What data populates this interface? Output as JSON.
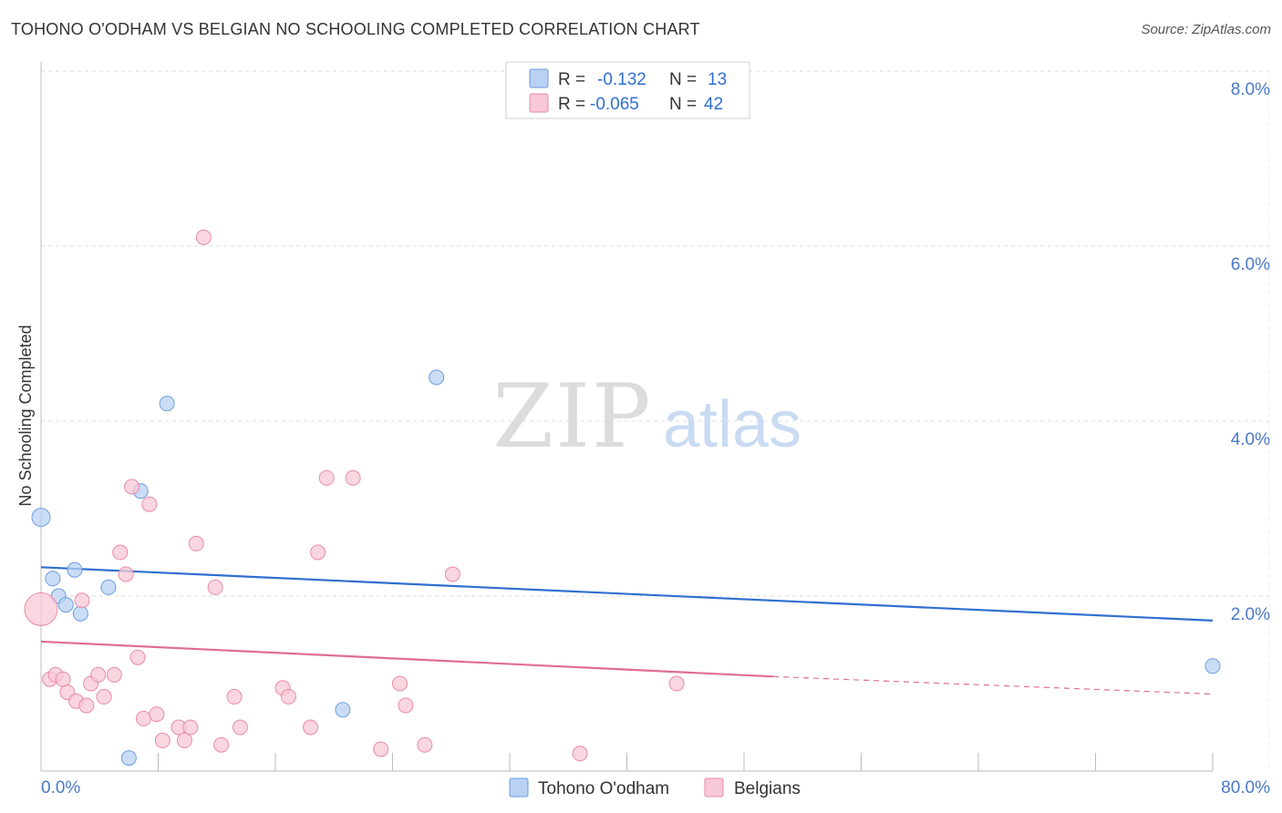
{
  "chart_data": {
    "type": "scatter",
    "title": "TOHONO O'ODHAM VS BELGIAN NO SCHOOLING COMPLETED CORRELATION CHART",
    "source": "Source: ZipAtlas.com",
    "ylabel": "No Schooling Completed",
    "xlabel": "",
    "xlim": [
      0,
      80
    ],
    "ylim": [
      0,
      8
    ],
    "x_tick_labels": [
      "0.0%",
      "80.0%"
    ],
    "y_tick_labels": [
      "8.0%",
      "6.0%",
      "4.0%",
      "2.0%"
    ],
    "y_tick_values": [
      8,
      6,
      4,
      2
    ],
    "watermark": {
      "zip": "ZIP",
      "atlas": "atlas"
    },
    "colors": {
      "tohono": "#6b9ce0",
      "tohono_fill": "#b9d1f3",
      "belgians": "#e98aa8",
      "belgians_fill": "#f8c8d6",
      "tohono_line": "#2f6fd1",
      "belgians_line": "#e06d93",
      "axis_label": "#4a78c8"
    },
    "legend": [
      {
        "series": "tohono",
        "r_label": "R =",
        "r_value": "-0.132",
        "n_label": "N =",
        "n_value": "13"
      },
      {
        "series": "belgians",
        "r_label": "R =",
        "r_value": "-0.065",
        "n_label": "N =",
        "n_value": "42"
      }
    ],
    "series": [
      {
        "name": "Tohono O'odham",
        "key": "tohono",
        "points": [
          [
            0.0,
            2.9
          ],
          [
            0.8,
            2.2
          ],
          [
            1.2,
            2.0
          ],
          [
            1.7,
            1.9
          ],
          [
            2.3,
            2.3
          ],
          [
            2.7,
            1.8
          ],
          [
            4.6,
            2.1
          ],
          [
            6.8,
            3.2
          ],
          [
            8.6,
            4.2
          ],
          [
            20.6,
            0.7
          ],
          [
            27.0,
            4.5
          ],
          [
            6.0,
            0.15
          ],
          [
            80.0,
            1.2
          ]
        ],
        "trend": {
          "x1": 0,
          "y1": 2.33,
          "x2": 80,
          "y2": 1.72
        }
      },
      {
        "name": "Belgians",
        "key": "belgians",
        "points": [
          [
            0.0,
            1.85
          ],
          [
            0.6,
            1.05
          ],
          [
            1.0,
            1.1
          ],
          [
            1.5,
            1.05
          ],
          [
            1.8,
            0.9
          ],
          [
            2.4,
            0.8
          ],
          [
            2.8,
            1.95
          ],
          [
            3.1,
            0.75
          ],
          [
            3.4,
            1.0
          ],
          [
            3.9,
            1.1
          ],
          [
            4.3,
            0.85
          ],
          [
            5.0,
            1.1
          ],
          [
            5.4,
            2.5
          ],
          [
            5.8,
            2.25
          ],
          [
            6.2,
            3.25
          ],
          [
            6.6,
            1.3
          ],
          [
            7.0,
            0.6
          ],
          [
            7.4,
            3.05
          ],
          [
            7.9,
            0.65
          ],
          [
            8.3,
            0.35
          ],
          [
            9.4,
            0.5
          ],
          [
            9.8,
            0.35
          ],
          [
            10.2,
            0.5
          ],
          [
            10.6,
            2.6
          ],
          [
            11.1,
            6.1
          ],
          [
            11.9,
            2.1
          ],
          [
            12.3,
            0.3
          ],
          [
            13.2,
            0.85
          ],
          [
            13.6,
            0.5
          ],
          [
            16.5,
            0.95
          ],
          [
            16.9,
            0.85
          ],
          [
            18.4,
            0.5
          ],
          [
            18.9,
            2.5
          ],
          [
            19.5,
            3.35
          ],
          [
            21.3,
            3.35
          ],
          [
            23.2,
            0.25
          ],
          [
            24.5,
            1.0
          ],
          [
            24.9,
            0.75
          ],
          [
            26.2,
            0.3
          ],
          [
            28.1,
            2.25
          ],
          [
            36.8,
            0.2
          ],
          [
            43.4,
            1.0
          ]
        ],
        "trend": {
          "x1": 0,
          "y1": 1.48,
          "x2": 50,
          "y2": 1.08,
          "x3": 80,
          "y3": 0.88
        }
      }
    ],
    "bottom_legend": [
      {
        "key": "tohono",
        "label": "Tohono O'odham"
      },
      {
        "key": "belgians",
        "label": "Belgians"
      }
    ]
  }
}
